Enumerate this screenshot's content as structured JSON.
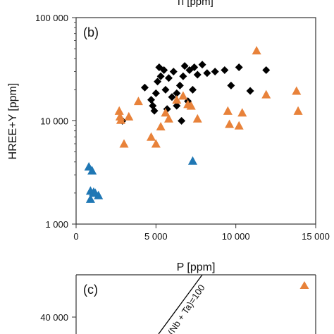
{
  "top_cutoff_label": "Ti [ppm]",
  "panel_b": {
    "panel_label": "(b)"
  },
  "panel_c": {
    "panel_label": "(c)",
    "y_tick_label": "40 000",
    "line_label": "(Nb + Ta)=100"
  },
  "colors": {
    "orange": "#E8823A",
    "blue": "#1F77B4",
    "black": "#000000"
  },
  "chart_data": [
    {
      "type": "scatter",
      "panel": "(b)",
      "xlabel": "P [ppm]",
      "ylabel": "HREE+Y [ppm]",
      "xlim": [
        0,
        15000
      ],
      "ylim": [
        1000,
        100000
      ],
      "yscale": "log",
      "x_tick_labels": [
        "0",
        "5 000",
        "10 000",
        "15 000"
      ],
      "x_ticks": [
        0,
        5000,
        10000,
        15000
      ],
      "y_tick_labels": [
        "1 000",
        "10 000",
        "100 000"
      ],
      "y_ticks": [
        1000,
        10000,
        100000
      ],
      "series": [
        {
          "marker": "diamond",
          "color": "#000000",
          "points": [
            [
              4300,
              21000
            ],
            [
              4700,
              16000
            ],
            [
              4800,
              14000
            ],
            [
              5000,
              18500
            ],
            [
              5100,
              24000
            ],
            [
              5200,
              33000
            ],
            [
              5300,
              27000
            ],
            [
              5500,
              31000
            ],
            [
              5600,
              20000
            ],
            [
              5800,
              26000
            ],
            [
              6000,
              17000
            ],
            [
              6100,
              30000
            ],
            [
              6300,
              14000
            ],
            [
              6500,
              22000
            ],
            [
              6700,
              27000
            ],
            [
              6800,
              34000
            ],
            [
              7000,
              15500
            ],
            [
              7100,
              31000
            ],
            [
              7300,
              20000
            ],
            [
              7400,
              33000
            ],
            [
              7600,
              28000
            ],
            [
              7900,
              35000
            ],
            [
              8200,
              29000
            ],
            [
              8700,
              30000
            ],
            [
              9300,
              31000
            ],
            [
              9700,
              22000
            ],
            [
              10200,
              33000
            ],
            [
              10900,
              19500
            ],
            [
              11900,
              31000
            ],
            [
              6600,
              10000
            ],
            [
              5700,
              13000
            ],
            [
              4900,
              12500
            ],
            [
              6300,
              18500
            ],
            [
              2900,
              10000
            ]
          ]
        },
        {
          "marker": "triangle",
          "color": "#E8823A",
          "points": [
            [
              2700,
              12500
            ],
            [
              2750,
              11000
            ],
            [
              2800,
              10200
            ],
            [
              3000,
              6000
            ],
            [
              3300,
              11000
            ],
            [
              3900,
              15500
            ],
            [
              4700,
              7000
            ],
            [
              5000,
              6000
            ],
            [
              5300,
              8800
            ],
            [
              5600,
              12000
            ],
            [
              5800,
              10500
            ],
            [
              6300,
              16000
            ],
            [
              6700,
              17500
            ],
            [
              7000,
              14500
            ],
            [
              7200,
              14000
            ],
            [
              7600,
              10500
            ],
            [
              9500,
              12500
            ],
            [
              9600,
              9300
            ],
            [
              10200,
              9000
            ],
            [
              10400,
              12000
            ],
            [
              11300,
              48000
            ],
            [
              11900,
              18000
            ],
            [
              13800,
              19500
            ],
            [
              13900,
              12500
            ]
          ]
        },
        {
          "marker": "triangle",
          "color": "#1F77B4",
          "points": [
            [
              800,
              3600
            ],
            [
              1000,
              3300
            ],
            [
              900,
              2100
            ],
            [
              1100,
              2050
            ],
            [
              1200,
              2000
            ],
            [
              1400,
              1900
            ],
            [
              900,
              1750
            ],
            [
              7300,
              4100
            ]
          ]
        }
      ]
    }
  ]
}
